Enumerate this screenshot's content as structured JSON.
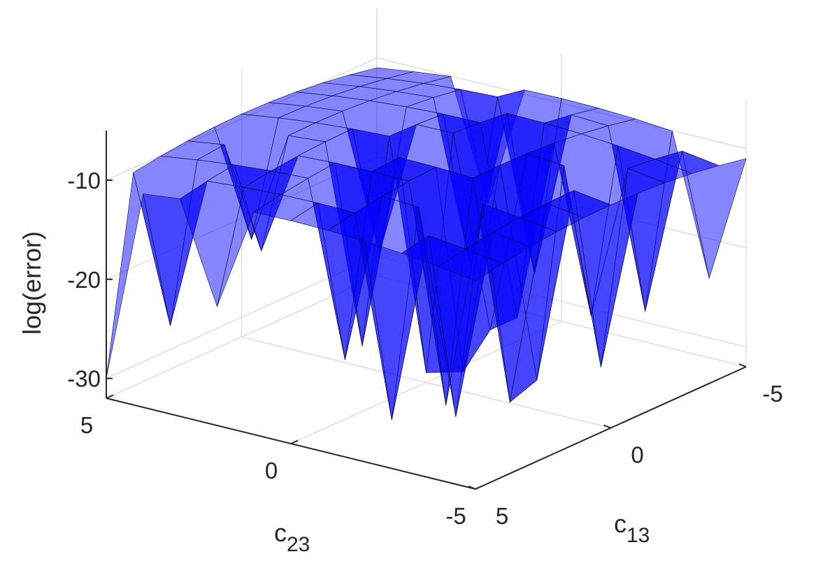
{
  "chart_data": {
    "type": "surface3d",
    "title": "",
    "x_axis": {
      "label_base": "c",
      "label_sub": "13",
      "ticks": [
        5,
        0,
        -5
      ],
      "range": [
        5,
        -5
      ]
    },
    "y_axis": {
      "label_base": "c",
      "label_sub": "23",
      "ticks": [
        5,
        0,
        -5
      ],
      "range": [
        5,
        -5
      ]
    },
    "z_axis": {
      "label": "log(error)",
      "ticks": [
        -10,
        -20,
        -30
      ],
      "range": [
        -32,
        -5
      ]
    },
    "grid": true,
    "surface_color": "#0000ff",
    "surface_alpha": 0.5,
    "mesh": {
      "x": [
        5,
        4,
        3,
        2,
        1,
        0,
        -1,
        -2,
        -3,
        -4,
        -5
      ],
      "y": [
        5,
        4,
        3,
        2,
        1,
        0,
        -1,
        -2,
        -3,
        -4,
        -5
      ],
      "base_level": -8,
      "edge_drop": 3,
      "spikes": [
        {
          "x": 5,
          "y": 5,
          "z": -30
        },
        {
          "x": 4,
          "y": 4,
          "z": -25
        },
        {
          "x": 5,
          "y": 2,
          "z": -20
        },
        {
          "x": 3,
          "y": 0,
          "z": -26
        },
        {
          "x": 4,
          "y": -2,
          "z": -29
        },
        {
          "x": 3,
          "y": -3,
          "z": -29
        },
        {
          "x": 2,
          "y": -2,
          "z": -30
        },
        {
          "x": 1,
          "y": -3,
          "z": -30
        },
        {
          "x": 0,
          "y": 0,
          "z": -31
        },
        {
          "x": 1,
          "y": 1,
          "z": -28
        },
        {
          "x": 0,
          "y": -1,
          "z": -30
        },
        {
          "x": -1,
          "y": -1,
          "z": -27
        },
        {
          "x": 0,
          "y": -3,
          "z": -29
        },
        {
          "x": -1,
          "y": -4,
          "z": -28
        },
        {
          "x": -2,
          "y": -1,
          "z": -27
        },
        {
          "x": -2,
          "y": -3,
          "z": -25
        },
        {
          "x": -4,
          "y": -3,
          "z": -27
        },
        {
          "x": -5,
          "y": -4,
          "z": -24
        },
        {
          "x": -5,
          "y": 2,
          "z": -22
        },
        {
          "x": -3,
          "y": 1,
          "z": -25
        },
        {
          "x": 2,
          "y": 3,
          "z": -19
        },
        {
          "x": -1,
          "y": 2,
          "z": -22
        },
        {
          "x": 1,
          "y": 4,
          "z": -20
        },
        {
          "x": -4,
          "y": 0,
          "z": -26
        }
      ]
    }
  }
}
